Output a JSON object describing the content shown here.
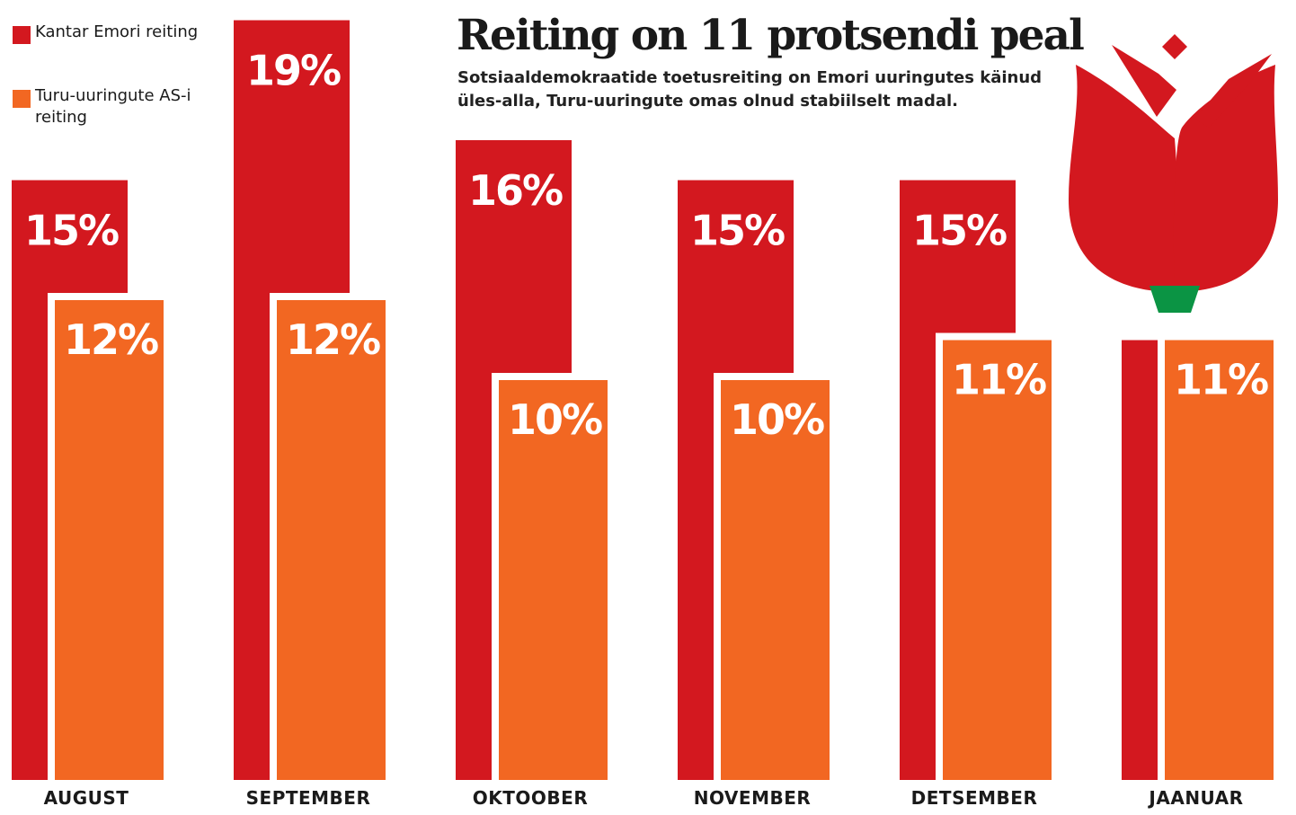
{
  "chart_data": {
    "type": "bar",
    "title": "Reiting on 11 protsendi peal",
    "subtitle": "Sotsiaaldemokraatide toetusreiting on Emori uuringutes käinud üles-alla, Turu-uuringute omas olnud stabiilselt madal.",
    "categories": [
      "AUGUST",
      "SEPTEMBER",
      "OKTOOBER",
      "NOVEMBER",
      "DETSEMBER",
      "JAANUAR"
    ],
    "series": [
      {
        "name": "Kantar Emori reiting",
        "color": "#d3181f",
        "values": [
          15,
          19,
          16,
          15,
          15,
          11
        ],
        "labels": [
          "15%",
          "19%",
          "16%",
          "15%",
          "15%",
          ""
        ]
      },
      {
        "name": "Turu-uuringute AS-i reiting",
        "color": "#f26722",
        "values": [
          12,
          12,
          10,
          10,
          11,
          11
        ],
        "labels": [
          "12%",
          "12%",
          "10%",
          "10%",
          "11%",
          "11%"
        ]
      }
    ],
    "legend": "top-left",
    "grid": false,
    "ylim": [
      0,
      19
    ]
  },
  "logo": {
    "icon": "rose-icon",
    "petal_color": "#d3181f",
    "sepal_color": "#0b9444"
  }
}
